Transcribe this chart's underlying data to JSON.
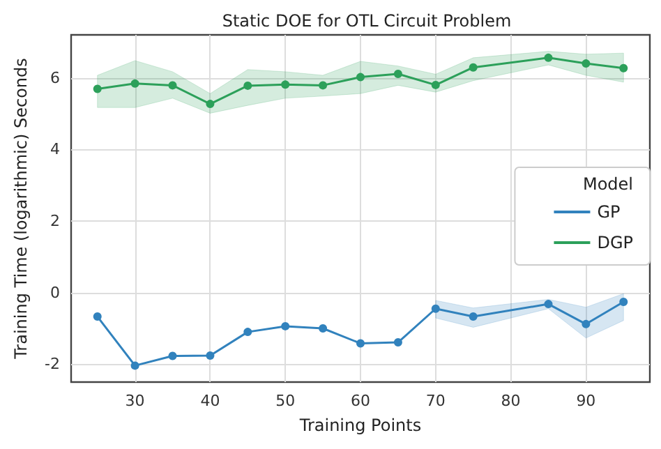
{
  "chart_data": {
    "type": "line",
    "title": "Static DOE for OTL Circuit Problem",
    "xlabel": "Training Points",
    "ylabel": "Training Time (logarithmic) Seconds",
    "legend_title": "Model",
    "x": [
      25,
      30,
      35,
      40,
      45,
      50,
      55,
      60,
      65,
      70,
      75,
      85,
      90,
      95
    ],
    "series": [
      {
        "name": "GP",
        "color": "#3182bd",
        "values": [
          -0.67,
          -2.04,
          -1.77,
          -1.76,
          -1.1,
          -0.94,
          -1.0,
          -1.42,
          -1.39,
          -0.45,
          -0.67,
          -0.32,
          -0.88,
          -0.26
        ],
        "lower": [
          null,
          null,
          null,
          null,
          null,
          null,
          null,
          null,
          null,
          -0.71,
          -0.97,
          -0.45,
          -1.27,
          -0.78
        ],
        "upper": [
          null,
          null,
          null,
          null,
          null,
          null,
          null,
          null,
          null,
          -0.22,
          -0.43,
          -0.19,
          -0.41,
          -0.03
        ]
      },
      {
        "name": "DGP",
        "color": "#2ca05a",
        "values": [
          5.69,
          5.84,
          5.79,
          5.27,
          5.78,
          5.81,
          5.79,
          6.02,
          6.11,
          5.8,
          6.29,
          6.56,
          6.4,
          6.27
        ],
        "lower": [
          5.17,
          5.17,
          5.43,
          5.01,
          5.23,
          5.43,
          5.49,
          5.56,
          5.79,
          5.6,
          5.92,
          6.36,
          6.07,
          5.88
        ],
        "upper": [
          6.07,
          6.48,
          6.17,
          5.56,
          6.23,
          6.17,
          6.07,
          6.46,
          6.33,
          6.1,
          6.56,
          6.74,
          6.66,
          6.69
        ]
      }
    ],
    "xlim": [
      21.5,
      98.5
    ],
    "xticks": [
      30,
      40,
      50,
      60,
      70,
      80,
      90
    ],
    "ylim": [
      -2.5,
      7.2
    ],
    "yticks": [
      -2,
      0,
      2,
      4,
      6
    ],
    "grid": true,
    "legend": "right",
    "marker": "circle",
    "line_style": "solid"
  }
}
